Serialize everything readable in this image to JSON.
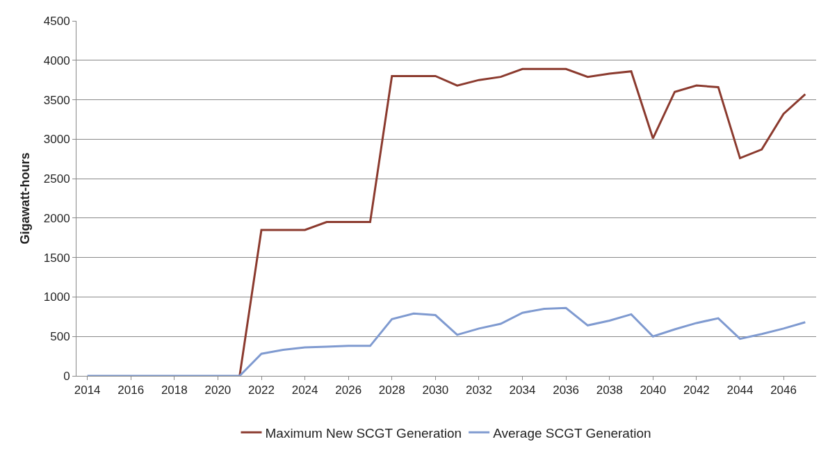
{
  "chart_data": {
    "type": "line",
    "ylabel": "Gigawatt-hours",
    "x": [
      2014,
      2015,
      2016,
      2017,
      2018,
      2019,
      2020,
      2021,
      2022,
      2023,
      2024,
      2025,
      2026,
      2027,
      2028,
      2029,
      2030,
      2031,
      2032,
      2033,
      2034,
      2035,
      2036,
      2037,
      2038,
      2039,
      2040,
      2041,
      2042,
      2043,
      2044,
      2045,
      2046,
      2047
    ],
    "series": [
      {
        "name": "Maximum New SCGT Generation",
        "color": "#8b3a2e",
        "values": [
          null,
          null,
          null,
          null,
          null,
          null,
          null,
          0,
          1850,
          1850,
          1850,
          1950,
          1950,
          1950,
          3800,
          3800,
          3800,
          3680,
          3750,
          3790,
          3890,
          3890,
          3890,
          3790,
          3830,
          3860,
          3010,
          3600,
          3680,
          3660,
          2760,
          2870,
          3320,
          3570
        ]
      },
      {
        "name": "Average SCGT Generation",
        "color": "#7f9ad0",
        "values": [
          0,
          0,
          0,
          0,
          0,
          0,
          0,
          0,
          280,
          330,
          360,
          370,
          380,
          380,
          720,
          790,
          770,
          520,
          600,
          660,
          800,
          850,
          860,
          640,
          700,
          780,
          500,
          590,
          670,
          730,
          470,
          530,
          600,
          680
        ]
      }
    ],
    "xlim": [
      2013.5,
      2047.5
    ],
    "xticks": [
      2014,
      2016,
      2018,
      2020,
      2022,
      2024,
      2026,
      2028,
      2030,
      2032,
      2034,
      2036,
      2038,
      2040,
      2042,
      2044,
      2046
    ],
    "ylim": [
      0,
      4500
    ],
    "yticks": [
      0,
      500,
      1000,
      1500,
      2000,
      2500,
      3000,
      3500,
      4000,
      4500
    ],
    "grid": "y",
    "legend": "bottom",
    "marker": "none",
    "line_style": "solid"
  }
}
